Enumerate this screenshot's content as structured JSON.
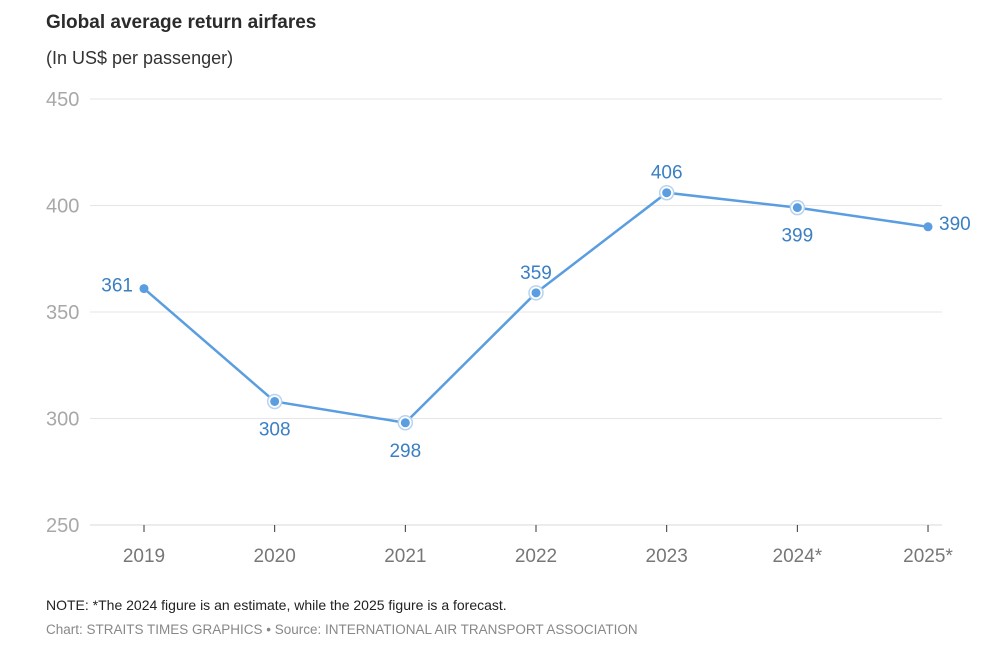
{
  "chart_data": {
    "type": "line",
    "title": "Global average return airfares",
    "subtitle": "(In US$ per passenger)",
    "categories": [
      "2019",
      "2020",
      "2021",
      "2022",
      "2023",
      "2024*",
      "2025*"
    ],
    "values": [
      361,
      308,
      298,
      359,
      406,
      399,
      390
    ],
    "ylim": [
      250,
      450
    ],
    "yticks": [
      250,
      300,
      350,
      400,
      450
    ],
    "grid": true,
    "line_color": "#5a9de0",
    "label_color": "#3a7fc4",
    "note": "NOTE: *The 2024 figure is an estimate, while the 2025 figure is a forecast.",
    "credit": "Chart: STRAITS TIMES GRAPHICS • Source: INTERNATIONAL AIR TRANSPORT ASSOCIATION"
  }
}
